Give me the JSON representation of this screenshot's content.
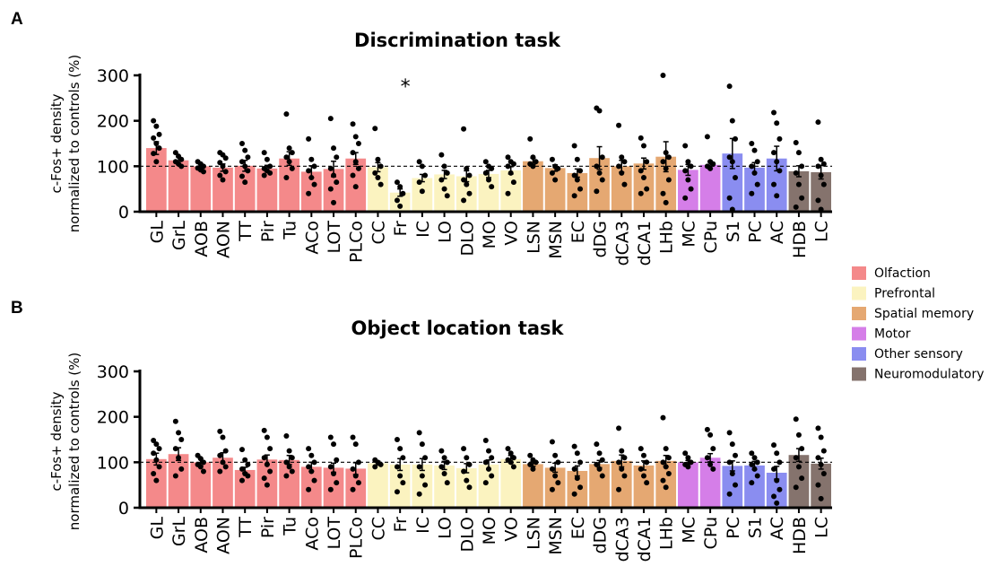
{
  "figure": {
    "panel_a_letter": "A",
    "panel_b_letter": "B"
  },
  "legend": {
    "entries": [
      {
        "group": "Olfaction",
        "color": "#f4898a"
      },
      {
        "group": "Prefrontal",
        "color": "#fbf3c0"
      },
      {
        "group": "Spatial memory",
        "color": "#e5a872"
      },
      {
        "group": "Motor",
        "color": "#d57ee8"
      },
      {
        "group": "Other sensory",
        "color": "#8a8df0"
      },
      {
        "group": "Neuromodulatory",
        "color": "#85736d"
      }
    ]
  },
  "chart_data": [
    {
      "type": "bar",
      "panel": "A",
      "title": "Discrimination task",
      "ylabel_line1": "c-Fos+ density",
      "ylabel_line2": "normalized to controls (%)",
      "ylim": [
        0,
        300
      ],
      "yticks": [
        "0",
        "100",
        "200",
        "300"
      ],
      "reference_line": 100,
      "categories": [
        "GL",
        "GrL",
        "AOB",
        "AON",
        "TT",
        "Pir",
        "Tu",
        "ACo",
        "LOT",
        "PLCo",
        "CC",
        "Fr",
        "IC",
        "LO",
        "DLO",
        "MO",
        "VO",
        "LSN",
        "MSN",
        "EC",
        "dDG",
        "dCA3",
        "dCA1",
        "LHb",
        "MC",
        "CPu",
        "S1",
        "PC",
        "AC",
        "HDB",
        "LC"
      ],
      "groups": [
        "Olfaction",
        "Olfaction",
        "Olfaction",
        "Olfaction",
        "Olfaction",
        "Olfaction",
        "Olfaction",
        "Olfaction",
        "Olfaction",
        "Olfaction",
        "Prefrontal",
        "Prefrontal",
        "Prefrontal",
        "Prefrontal",
        "Prefrontal",
        "Prefrontal",
        "Prefrontal",
        "Spatial memory",
        "Spatial memory",
        "Spatial memory",
        "Spatial memory",
        "Spatial memory",
        "Spatial memory",
        "Spatial memory",
        "Motor",
        "Motor",
        "Other sensory",
        "Other sensory",
        "Other sensory",
        "Neuromodulatory",
        "Neuromodulatory"
      ],
      "values": [
        140,
        113,
        100,
        97,
        101,
        95,
        117,
        88,
        94,
        117,
        98,
        42,
        74,
        82,
        78,
        83,
        91,
        111,
        96,
        85,
        118,
        100,
        106,
        121,
        92,
        103,
        128,
        97,
        117,
        89,
        87
      ],
      "errors": [
        14,
        8,
        5,
        8,
        12,
        7,
        15,
        13,
        17,
        13,
        10,
        8,
        8,
        9,
        12,
        8,
        8,
        7,
        7,
        9,
        25,
        13,
        12,
        33,
        12,
        8,
        33,
        11,
        27,
        12,
        15
      ],
      "points": [
        [
          200,
          188,
          170,
          162,
          150,
          140,
          128,
          110
        ],
        [
          130,
          122,
          115,
          110,
          105,
          100
        ],
        [
          110,
          105,
          100,
          96,
          92,
          88
        ],
        [
          130,
          125,
          118,
          108,
          100,
          88,
          80,
          70
        ],
        [
          150,
          135,
          120,
          110,
          100,
          90,
          78,
          65
        ],
        [
          130,
          115,
          100,
          95,
          90,
          85,
          80
        ],
        [
          215,
          140,
          130,
          120,
          110,
          95,
          75
        ],
        [
          160,
          115,
          100,
          90,
          75,
          60,
          40
        ],
        [
          205,
          140,
          120,
          95,
          80,
          65,
          50,
          20
        ],
        [
          193,
          165,
          150,
          130,
          110,
          95,
          80,
          55
        ],
        [
          183,
          115,
          100,
          85,
          75,
          60
        ],
        [
          65,
          55,
          40,
          25,
          12
        ],
        [
          110,
          100,
          80,
          65,
          45
        ],
        [
          125,
          100,
          85,
          70,
          50,
          35
        ],
        [
          182,
          95,
          80,
          70,
          60,
          40,
          25
        ],
        [
          110,
          100,
          95,
          85,
          70,
          55
        ],
        [
          120,
          110,
          105,
          100,
          85,
          65,
          40
        ],
        [
          160,
          120,
          110,
          105,
          100
        ],
        [
          115,
          100,
          95,
          85,
          70
        ],
        [
          145,
          115,
          90,
          80,
          70,
          50,
          35
        ],
        [
          228,
          222,
          120,
          100,
          85,
          70,
          45
        ],
        [
          190,
          120,
          110,
          100,
          85,
          60
        ],
        [
          162,
          145,
          110,
          90,
          75,
          50,
          40
        ],
        [
          300,
          130,
          120,
          110,
          95,
          70,
          40,
          20
        ],
        [
          145,
          110,
          100,
          90,
          70,
          50,
          30
        ],
        [
          165,
          110,
          105,
          100,
          95
        ],
        [
          276,
          200,
          160,
          120,
          110,
          75,
          30,
          5
        ],
        [
          150,
          135,
          110,
          100,
          85,
          60,
          40
        ],
        [
          218,
          195,
          160,
          130,
          110,
          90,
          60,
          35
        ],
        [
          152,
          130,
          100,
          85,
          60,
          30,
          10
        ],
        [
          197,
          115,
          105,
          100,
          80,
          60,
          25,
          5
        ]
      ],
      "significance": [
        {
          "category": "Fr",
          "label": "*"
        }
      ]
    },
    {
      "type": "bar",
      "panel": "B",
      "title": "Object location task",
      "ylabel_line1": "c-Fos+ density",
      "ylabel_line2": "normalized to controls (%)",
      "ylim": [
        0,
        300
      ],
      "yticks": [
        "0",
        "100",
        "200",
        "300"
      ],
      "reference_line": 100,
      "categories": [
        "GL",
        "GrL",
        "AOB",
        "AON",
        "TT",
        "Pir",
        "Tu",
        "ACo",
        "LOT",
        "PLCo",
        "CC",
        "Fr",
        "IC",
        "LO",
        "DLO",
        "MO",
        "VO",
        "LSN",
        "MSN",
        "EC",
        "dDG",
        "dCA3",
        "dCA1",
        "LHb",
        "MC",
        "CPu",
        "PC",
        "S1",
        "AC",
        "HDB",
        "LC"
      ],
      "groups": [
        "Olfaction",
        "Olfaction",
        "Olfaction",
        "Olfaction",
        "Olfaction",
        "Olfaction",
        "Olfaction",
        "Olfaction",
        "Olfaction",
        "Olfaction",
        "Prefrontal",
        "Prefrontal",
        "Prefrontal",
        "Prefrontal",
        "Prefrontal",
        "Prefrontal",
        "Prefrontal",
        "Spatial memory",
        "Spatial memory",
        "Spatial memory",
        "Spatial memory",
        "Spatial memory",
        "Spatial memory",
        "Spatial memory",
        "Motor",
        "Motor",
        "Other sensory",
        "Other sensory",
        "Other sensory",
        "Neuromodulatory",
        "Neuromodulatory"
      ],
      "values": [
        107,
        118,
        100,
        110,
        83,
        106,
        105,
        90,
        88,
        86,
        98,
        95,
        95,
        93,
        87,
        95,
        107,
        96,
        88,
        81,
        96,
        103,
        93,
        103,
        100,
        110,
        92,
        93,
        77,
        116,
        97
      ],
      "errors": [
        13,
        14,
        8,
        11,
        6,
        10,
        10,
        10,
        10,
        13,
        4,
        13,
        13,
        9,
        10,
        10,
        8,
        5,
        10,
        11,
        8,
        13,
        10,
        12,
        4,
        9,
        11,
        9,
        14,
        14,
        12
      ],
      "points": [
        [
          148,
          140,
          130,
          120,
          105,
          90,
          75,
          60
        ],
        [
          190,
          165,
          150,
          130,
          110,
          85,
          70
        ],
        [
          115,
          108,
          100,
          95,
          90,
          80
        ],
        [
          168,
          155,
          125,
          115,
          100,
          90,
          80
        ],
        [
          128,
          105,
          95,
          85,
          75,
          70,
          60
        ],
        [
          170,
          155,
          130,
          110,
          95,
          80,
          65,
          50
        ],
        [
          158,
          125,
          110,
          100,
          90,
          80,
          70
        ],
        [
          130,
          115,
          100,
          90,
          80,
          60,
          40
        ],
        [
          155,
          140,
          105,
          90,
          75,
          55,
          40
        ],
        [
          155,
          140,
          100,
          85,
          70,
          55,
          40
        ],
        [
          105,
          100,
          95,
          90
        ],
        [
          150,
          130,
          110,
          90,
          70,
          55,
          35
        ],
        [
          165,
          140,
          110,
          90,
          70,
          50,
          30
        ],
        [
          125,
          110,
          100,
          90,
          75,
          55
        ],
        [
          130,
          110,
          95,
          80,
          60,
          45
        ],
        [
          148,
          125,
          110,
          100,
          85,
          70,
          55
        ],
        [
          130,
          120,
          110,
          105,
          100,
          90
        ],
        [
          115,
          105,
          100,
          95,
          85
        ],
        [
          145,
          115,
          100,
          85,
          70,
          55,
          40
        ],
        [
          135,
          120,
          100,
          85,
          65,
          45,
          30
        ],
        [
          140,
          120,
          105,
          95,
          85,
          70
        ],
        [
          175,
          125,
          110,
          100,
          85,
          70,
          40
        ],
        [
          130,
          115,
          100,
          85,
          70,
          55
        ],
        [
          198,
          130,
          110,
          100,
          90,
          75,
          60,
          45
        ],
        [
          120,
          110,
          100,
          95,
          90
        ],
        [
          172,
          160,
          130,
          110,
          95,
          85
        ],
        [
          165,
          140,
          115,
          100,
          75,
          50,
          30
        ],
        [
          120,
          110,
          100,
          95,
          85,
          70,
          55
        ],
        [
          138,
          120,
          100,
          85,
          60,
          40,
          25,
          10
        ],
        [
          195,
          160,
          130,
          110,
          90,
          65,
          45
        ],
        [
          175,
          155,
          125,
          110,
          95,
          75,
          50,
          20
        ]
      ],
      "significance": []
    }
  ]
}
